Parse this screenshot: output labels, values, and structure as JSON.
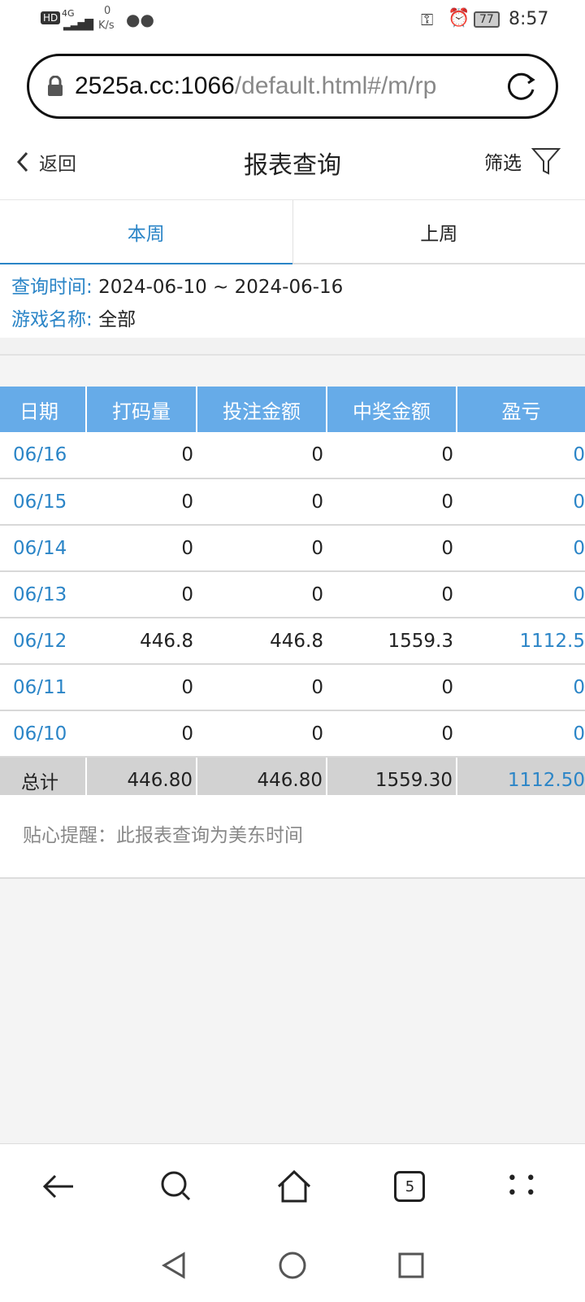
{
  "status_bar": {
    "network": "4G",
    "speed_value": "0",
    "speed_unit": "K/s",
    "battery": "77",
    "time": "8:57"
  },
  "browser": {
    "url_host": "2525a.cc:1066",
    "url_path": "/default.html#/m/rp",
    "tab_count": "5"
  },
  "header": {
    "back_label": "返回",
    "title": "报表查询",
    "filter_label": "筛选"
  },
  "tabs": [
    {
      "label": "本周",
      "active": true
    },
    {
      "label": "上周",
      "active": false
    }
  ],
  "query": {
    "time_label": "查询时间:",
    "time_value": "2024-06-10 ~ 2024-06-16",
    "game_label": "游戏名称:",
    "game_value": "全部"
  },
  "table": {
    "headers": [
      "日期",
      "打码量",
      "投注金额",
      "中奖金额",
      "盈亏"
    ],
    "rows": [
      [
        "06/16",
        "0",
        "0",
        "0",
        "0"
      ],
      [
        "06/15",
        "0",
        "0",
        "0",
        "0"
      ],
      [
        "06/14",
        "0",
        "0",
        "0",
        "0"
      ],
      [
        "06/13",
        "0",
        "0",
        "0",
        "0"
      ],
      [
        "06/12",
        "446.8",
        "446.8",
        "1559.3",
        "1112.5"
      ],
      [
        "06/11",
        "0",
        "0",
        "0",
        "0"
      ],
      [
        "06/10",
        "0",
        "0",
        "0",
        "0"
      ]
    ],
    "total": [
      "总计",
      "446.80",
      "446.80",
      "1559.30",
      "1112.50"
    ]
  },
  "note": "贴心提醒：此报表查询为美东时间",
  "colors": {
    "accent": "#2b85c7",
    "header_bg": "#66abe8",
    "total_bg": "#d2d2d2"
  }
}
